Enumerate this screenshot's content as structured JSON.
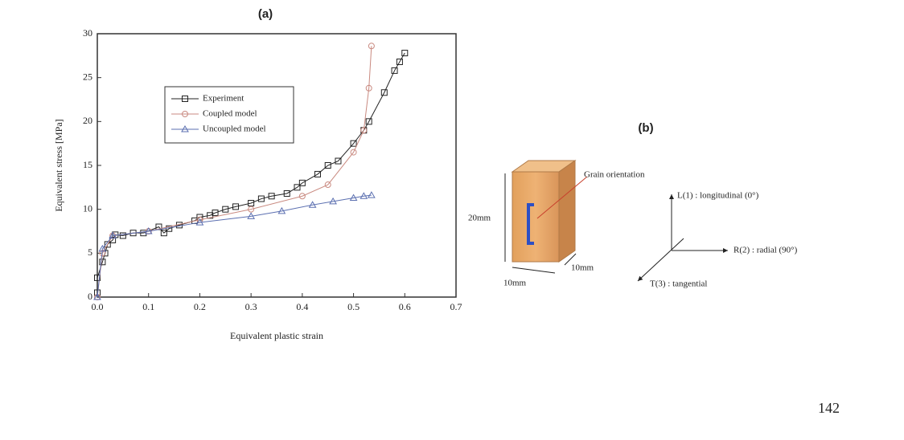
{
  "chart_data": {
    "type": "line",
    "title": "(a)",
    "xlabel": "Equivalent plastic strain",
    "ylabel": "Equivalent stress [MPa]",
    "xlim": [
      0,
      0.7
    ],
    "xticks": [
      {
        "value": 0,
        "label": "0.0"
      },
      0.1,
      0.2,
      0.3,
      0.4,
      0.5,
      0.6,
      0.7
    ],
    "ylim": [
      0,
      30
    ],
    "yticks": [
      0,
      5,
      10,
      15,
      20,
      25,
      30
    ],
    "legend": "upper left",
    "series": [
      {
        "name": "Experiment",
        "color": "#222222",
        "marker": "square",
        "x": [
          0.0,
          0.0,
          0.01,
          0.015,
          0.02,
          0.03,
          0.035,
          0.05,
          0.07,
          0.09,
          0.12,
          0.13,
          0.14,
          0.16,
          0.19,
          0.2,
          0.22,
          0.23,
          0.25,
          0.27,
          0.3,
          0.32,
          0.34,
          0.37,
          0.39,
          0.4,
          0.43,
          0.45,
          0.47,
          0.5,
          0.52,
          0.53,
          0.56,
          0.58,
          0.59,
          0.6
        ],
        "values": [
          0.5,
          2.2,
          4,
          5,
          6,
          6.5,
          7.1,
          7,
          7.3,
          7.3,
          8,
          7.3,
          7.8,
          8.2,
          8.7,
          9.1,
          9.3,
          9.6,
          10,
          10.3,
          10.7,
          11.2,
          11.5,
          11.8,
          12.5,
          13,
          14,
          15,
          15.5,
          17.5,
          19,
          20,
          23.3,
          25.8,
          26.8,
          27.8
        ]
      },
      {
        "name": "Coupled model",
        "color": "#c98a80",
        "marker": "circle",
        "x": [
          0,
          0.01,
          0.03,
          0.1,
          0.2,
          0.3,
          0.4,
          0.45,
          0.5,
          0.52,
          0.53,
          0.535
        ],
        "values": [
          0,
          5,
          7,
          7.5,
          8.8,
          10,
          11.5,
          12.8,
          16.5,
          19,
          23.8,
          28.6
        ]
      },
      {
        "name": "Uncoupled model",
        "color": "#5b6fb0",
        "marker": "triangle",
        "x": [
          0,
          0.01,
          0.03,
          0.1,
          0.2,
          0.3,
          0.36,
          0.42,
          0.46,
          0.5,
          0.52,
          0.535
        ],
        "values": [
          0,
          5.5,
          7,
          7.5,
          8.5,
          9.2,
          9.8,
          10.5,
          10.9,
          11.3,
          11.5,
          11.6
        ]
      }
    ]
  },
  "figure_b": {
    "title": "(b)",
    "grain_label": "Grain orientation",
    "height_label": "20mm",
    "width_label": "10mm",
    "depth_label": "10mm",
    "axis_l": "L(1) : longitudinal (0°)",
    "axis_r": "R(2) : radial (90°)",
    "axis_t": "T(3) : tangential"
  },
  "page_number": "142"
}
